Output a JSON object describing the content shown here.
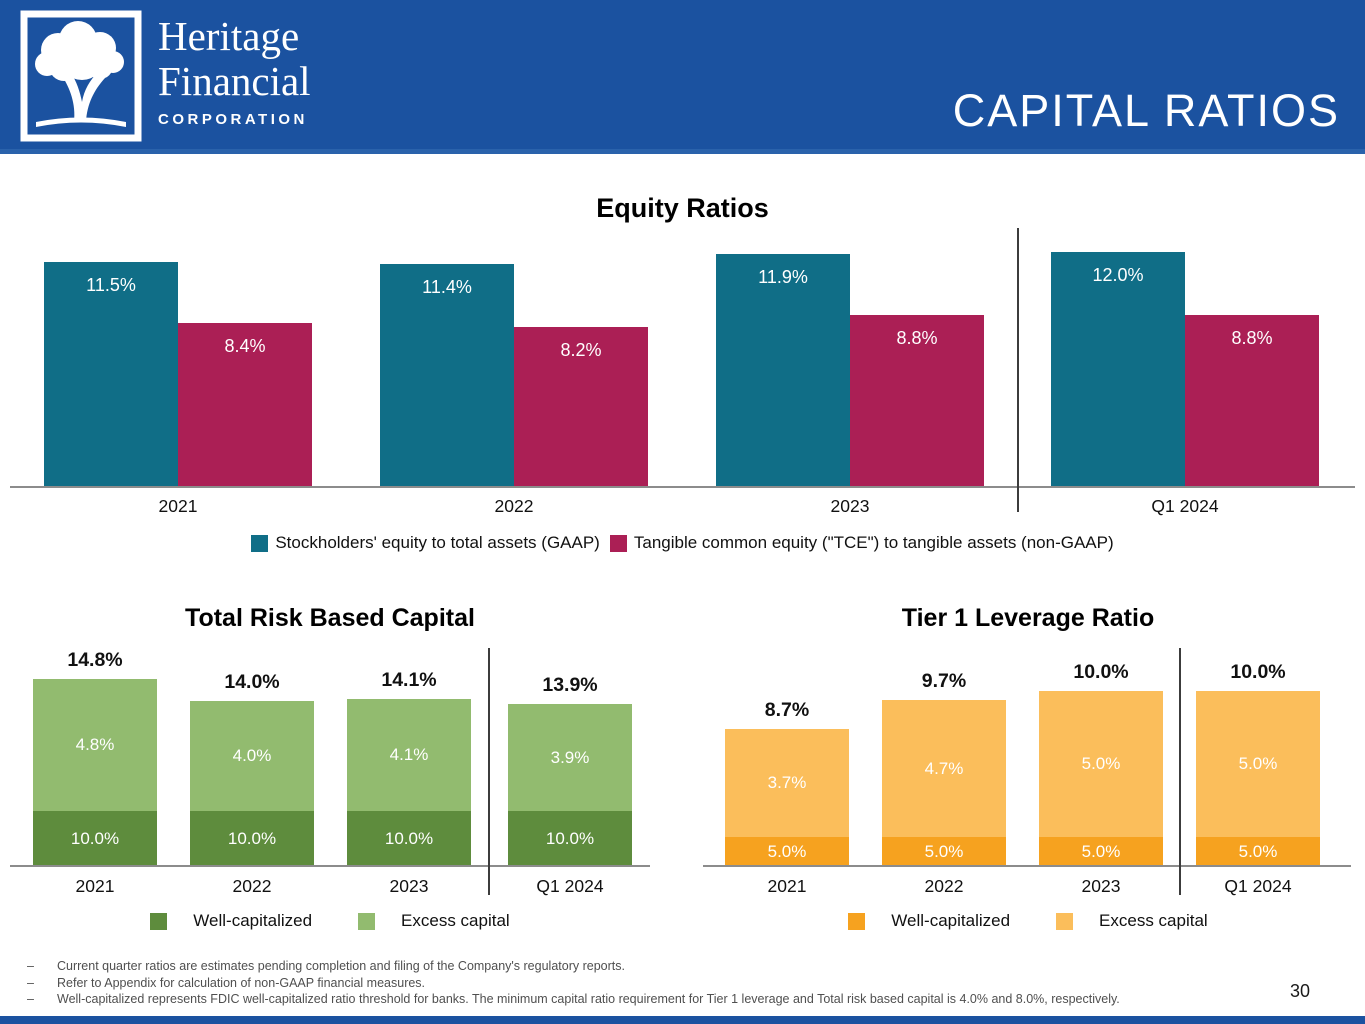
{
  "header": {
    "logo": {
      "line1": "Heritage",
      "line2": "Financial",
      "line3": "CORPORATION",
      "icon": "oak-tree-icon"
    },
    "title": "CAPITAL RATIOS",
    "bg_color": "#1B52A0"
  },
  "colors": {
    "header_blue": "#1B52A0",
    "teal": "#106E87",
    "crimson": "#AB1F55",
    "dark_green": "#5E8C3D",
    "light_green": "#92BB6F",
    "dark_orange": "#F6A21F",
    "light_orange": "#FBBE5B",
    "axis_gray": "#8C8C8C",
    "divider_gray": "#3C3C3C",
    "footnote_gray": "#4F4F4F"
  },
  "chart_data": [
    {
      "id": "equity",
      "type": "bar",
      "grouping": "grouped",
      "title": "Equity Ratios",
      "categories": [
        "2021",
        "2022",
        "2023",
        "Q1 2024"
      ],
      "series": [
        {
          "name": "Stockholders' equity to total assets (GAAP)",
          "color": "#106E87",
          "values": [
            11.5,
            11.4,
            11.9,
            12.0
          ],
          "labels": [
            "11.5%",
            "11.4%",
            "11.9%",
            "12.0%"
          ]
        },
        {
          "name": "Tangible common equity (\"TCE\") to tangible assets (non-GAAP)",
          "color": "#AB1F55",
          "values": [
            8.4,
            8.2,
            8.8,
            8.8
          ],
          "labels": [
            "8.4%",
            "8.2%",
            "8.8%",
            "8.8%"
          ]
        }
      ],
      "xlabel": "",
      "ylabel": "",
      "ylim": [
        0,
        12.5
      ],
      "grid": false,
      "legend_position": "bottom",
      "divider_after_category": "2023"
    },
    {
      "id": "total-risk-based-capital",
      "type": "bar",
      "grouping": "stacked",
      "title": "Total Risk Based Capital",
      "categories": [
        "2021",
        "2022",
        "2023",
        "Q1 2024"
      ],
      "series": [
        {
          "name": "Well-capitalized",
          "color": "#5E8C3D",
          "values": [
            10.0,
            10.0,
            10.0,
            10.0
          ],
          "labels": [
            "10.0%",
            "10.0%",
            "10.0%",
            "10.0%"
          ]
        },
        {
          "name": "Excess capital",
          "color": "#92BB6F",
          "values": [
            4.8,
            4.0,
            4.1,
            3.9
          ],
          "labels": [
            "4.8%",
            "4.0%",
            "4.1%",
            "3.9%"
          ]
        }
      ],
      "totals": [
        "14.8%",
        "14.0%",
        "14.1%",
        "13.9%"
      ],
      "total_values": [
        14.8,
        14.0,
        14.1,
        13.9
      ],
      "xlabel": "",
      "ylabel": "",
      "grid": false,
      "legend_position": "bottom",
      "divider_after_category": "2023"
    },
    {
      "id": "tier1-leverage-ratio",
      "type": "bar",
      "grouping": "stacked",
      "title": "Tier 1 Leverage Ratio",
      "categories": [
        "2021",
        "2022",
        "2023",
        "Q1 2024"
      ],
      "series": [
        {
          "name": "Well-capitalized",
          "color": "#F6A21F",
          "values": [
            5.0,
            5.0,
            5.0,
            5.0
          ],
          "labels": [
            "5.0%",
            "5.0%",
            "5.0%",
            "5.0%"
          ]
        },
        {
          "name": "Excess capital",
          "color": "#FBBE5B",
          "values": [
            3.7,
            4.7,
            5.0,
            5.0
          ],
          "labels": [
            "3.7%",
            "4.7%",
            "5.0%",
            "5.0%"
          ]
        }
      ],
      "totals": [
        "8.7%",
        "9.7%",
        "10.0%",
        "10.0%"
      ],
      "total_values": [
        8.7,
        9.7,
        10.0,
        10.0
      ],
      "xlabel": "",
      "ylabel": "",
      "grid": false,
      "legend_position": "bottom",
      "divider_after_category": "2023"
    }
  ],
  "footnote_dash": "–",
  "footnotes": [
    "Current quarter ratios are estimates pending completion and filing of the Company's regulatory reports.",
    "Refer to Appendix for calculation of non-GAAP financial measures.",
    "Well-capitalized represents FDIC well-capitalized ratio threshold for banks. The minimum capital ratio requirement for Tier 1 leverage and Total risk based capital is 4.0% and 8.0%, respectively."
  ],
  "page_number": "30"
}
